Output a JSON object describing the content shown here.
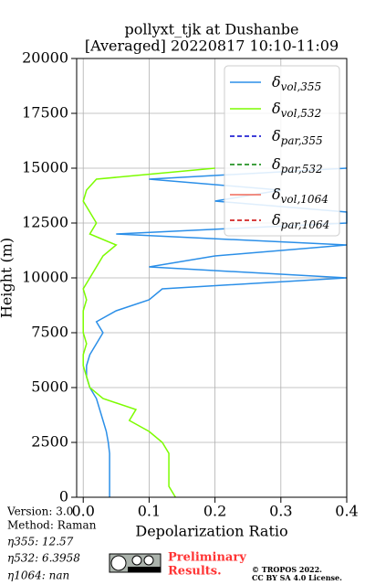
{
  "chart_data": {
    "type": "line",
    "title": "pollyxt_tjk at Dushanbe",
    "subtitle": "[Averaged] 20220817 10:10-11:09",
    "xlabel": "Depolarization Ratio",
    "ylabel": "Height (m)",
    "y": [
      0,
      500,
      1000,
      1500,
      2000,
      2500,
      3000,
      3500,
      4000,
      4500,
      5000,
      5500,
      6000,
      6500,
      7000,
      7500,
      8000,
      8500,
      9000,
      9500,
      10000,
      10500,
      11000,
      11500,
      12000,
      12500,
      13000,
      13500,
      14000,
      14500,
      15000
    ],
    "series": [
      {
        "name": "δvol,355",
        "color": "#2b8fe8",
        "dashed": false,
        "values": [
          0.04,
          0.04,
          0.04,
          0.04,
          0.04,
          0.038,
          0.035,
          0.03,
          0.025,
          0.02,
          0.01,
          0.005,
          0.005,
          0.01,
          0.02,
          0.03,
          0.02,
          0.05,
          0.1,
          0.12,
          0.4,
          0.1,
          0.2,
          0.4,
          0.05,
          0.4,
          0.4,
          0.2,
          0.3,
          0.1,
          0.4
        ]
      },
      {
        "name": "δvol,532",
        "color": "#7cfc00",
        "dashed": false,
        "values": [
          0.14,
          0.13,
          0.13,
          0.13,
          0.13,
          0.12,
          0.1,
          0.07,
          0.08,
          0.03,
          0.01,
          0.005,
          0,
          0,
          0.005,
          0,
          0,
          0,
          0.005,
          0,
          0.01,
          0.02,
          0.03,
          0.05,
          0.01,
          0.02,
          0.01,
          0,
          0.005,
          0.02,
          0.2
        ]
      },
      {
        "name": "δpar,355",
        "color": "#0000cc",
        "dashed": true,
        "values": [
          null,
          null,
          null,
          null,
          null,
          null,
          null,
          null,
          null,
          null,
          null,
          null,
          null,
          null,
          null,
          null,
          null,
          null,
          null,
          null,
          null,
          null,
          null,
          null,
          null,
          null,
          null,
          null,
          null,
          null,
          null
        ]
      },
      {
        "name": "δpar,532",
        "color": "#008000",
        "dashed": true,
        "values": [
          null,
          null,
          null,
          null,
          null,
          null,
          null,
          null,
          null,
          null,
          null,
          null,
          null,
          null,
          null,
          null,
          null,
          null,
          null,
          null,
          null,
          null,
          null,
          null,
          null,
          null,
          null,
          null,
          null,
          null,
          null
        ]
      },
      {
        "name": "δvol,1064",
        "color": "#f06a5a",
        "dashed": false,
        "values": [
          null,
          null,
          null,
          null,
          null,
          null,
          null,
          null,
          null,
          null,
          null,
          null,
          null,
          null,
          null,
          null,
          null,
          null,
          null,
          null,
          null,
          null,
          null,
          null,
          null,
          null,
          null,
          null,
          null,
          null,
          null
        ]
      },
      {
        "name": "δpar,1064",
        "color": "#cc0000",
        "dashed": true,
        "values": [
          null,
          null,
          null,
          null,
          null,
          null,
          null,
          null,
          null,
          null,
          null,
          null,
          null,
          null,
          null,
          null,
          null,
          null,
          null,
          null,
          null,
          null,
          null,
          null,
          null,
          null,
          null,
          null,
          null,
          null,
          null
        ]
      }
    ],
    "xlim": [
      -0.01,
      0.4
    ],
    "xticks": [
      {
        "value": 0,
        "label": "0.0"
      },
      0.1,
      0.2,
      0.3,
      0.4
    ],
    "ylim": [
      0,
      20000
    ],
    "yticks": [
      0,
      2500,
      5000,
      7500,
      10000,
      12500,
      15000,
      17500,
      20000
    ],
    "grid": true,
    "legend": "upper right"
  },
  "info": [
    "Version: 3.0",
    "Method: Raman",
    "η355:  12.57",
    "η532: 6.3958",
    "η1064:    nan"
  ],
  "notice": [
    "Preliminary",
    "Results."
  ],
  "copyright": [
    "© TROPOS 2022.",
    "CC BY SA 4.0 License."
  ]
}
